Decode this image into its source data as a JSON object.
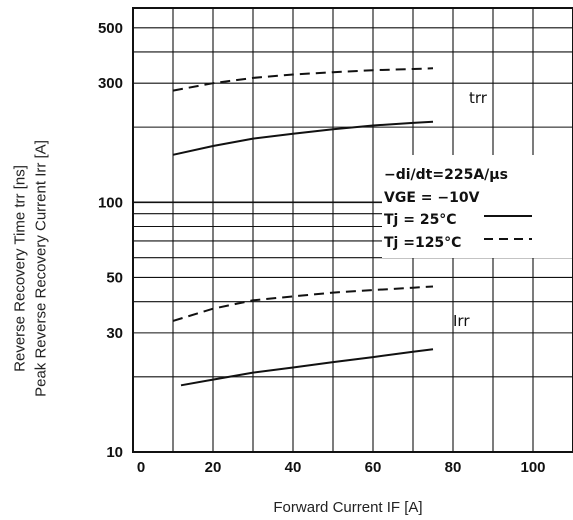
{
  "chart_data": {
    "type": "line",
    "xlabel": "Forward Current IF [A]",
    "ylabel_outer": "Reverse Recovery Time trr [ns]",
    "ylabel_inner": "Peak Reverse Recovery Current Irr [A]",
    "xlim": [
      0,
      110
    ],
    "ylim": [
      10,
      600
    ],
    "yscale": "log",
    "x_ticks": [
      0,
      20,
      40,
      60,
      80,
      100
    ],
    "y_ticks": [
      10,
      30,
      50,
      100,
      300,
      500
    ],
    "grid": true,
    "conditions": [
      "−di/dt=225A/μs",
      "VGE = −10V"
    ],
    "legend": [
      {
        "label": "Tj = 25°C",
        "style": "solid"
      },
      {
        "label": "Tj =125°C",
        "style": "dashed"
      }
    ],
    "curve_labels": [
      {
        "text": "trr",
        "x": 84,
        "y": 250
      },
      {
        "text": "Irr",
        "x": 80,
        "y": 32
      }
    ],
    "series": [
      {
        "quantity": "trr",
        "Tj": "25°C",
        "style": "solid",
        "x": [
          10,
          20,
          30,
          40,
          50,
          60,
          70,
          75
        ],
        "y": [
          155,
          168,
          180,
          188,
          196,
          203,
          208,
          210
        ]
      },
      {
        "quantity": "trr",
        "Tj": "125°C",
        "style": "dashed",
        "x": [
          10,
          20,
          30,
          40,
          50,
          60,
          70,
          75
        ],
        "y": [
          280,
          300,
          315,
          325,
          332,
          338,
          342,
          344
        ]
      },
      {
        "quantity": "Irr",
        "Tj": "25°C",
        "style": "solid",
        "x": [
          12,
          20,
          30,
          40,
          50,
          60,
          70,
          75
        ],
        "y": [
          18.5,
          19.5,
          20.8,
          21.8,
          22.9,
          24.0,
          25.2,
          25.8
        ]
      },
      {
        "quantity": "Irr",
        "Tj": "125°C",
        "style": "dashed",
        "x": [
          10,
          20,
          30,
          40,
          50,
          60,
          70,
          75
        ],
        "y": [
          33.5,
          37.5,
          40.5,
          42.0,
          43.5,
          44.5,
          45.5,
          46.0
        ]
      }
    ]
  }
}
